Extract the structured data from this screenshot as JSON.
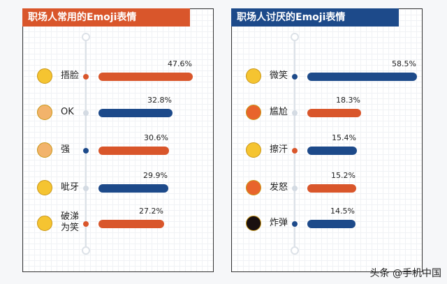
{
  "colors": {
    "orange": "#d9562b",
    "blue": "#1d4a8a",
    "gray": "#d4dbe3"
  },
  "chart_data": [
    {
      "type": "bar",
      "title": "职场人常用的Emoji表情",
      "categories": [
        "捂脸",
        "OK",
        "强",
        "呲牙",
        "破涕为笑"
      ],
      "values": [
        47.6,
        32.8,
        30.6,
        29.9,
        27.2
      ],
      "labels": [
        "47.6%",
        "32.8%",
        "30.6%",
        "29.9%",
        "27.2%"
      ],
      "bar_colors": [
        "orange",
        "blue",
        "orange",
        "blue",
        "orange"
      ],
      "dot_colors": [
        "orange",
        "gray",
        "blue",
        "gray",
        "orange"
      ],
      "emoji": [
        "facepalm",
        "ok-hand",
        "thumbs-up",
        "grin",
        "tears-of-joy"
      ]
    },
    {
      "type": "bar",
      "title": "职场人讨厌的Emoji表情",
      "categories": [
        "微笑",
        "尴尬",
        "擦汗",
        "发怒",
        "炸弹"
      ],
      "values": [
        58.5,
        18.3,
        15.4,
        15.2,
        14.5
      ],
      "labels": [
        "58.5%",
        "18.3%",
        "15.4%",
        "15.2%",
        "14.5%"
      ],
      "bar_colors": [
        "blue",
        "orange",
        "blue",
        "orange",
        "blue"
      ],
      "dot_colors": [
        "blue",
        "gray",
        "orange",
        "gray",
        "blue"
      ],
      "emoji": [
        "smile",
        "awkward",
        "sweat",
        "angry",
        "bomb"
      ]
    }
  ],
  "watermark": "头条 @手机中国"
}
